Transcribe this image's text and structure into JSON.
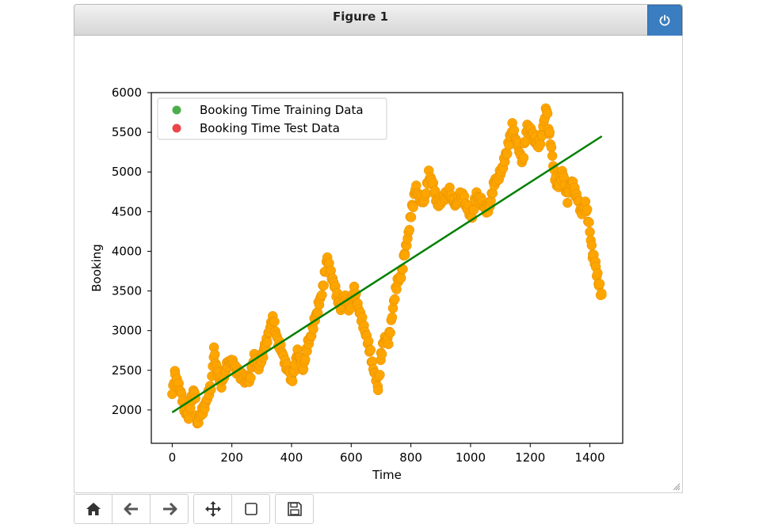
{
  "window": {
    "title": "Figure 1"
  },
  "toolbar": {
    "buttons": [
      {
        "name": "home",
        "icon": "home-icon"
      },
      {
        "name": "back",
        "icon": "arrow-left-icon"
      },
      {
        "name": "forward",
        "icon": "arrow-right-icon"
      },
      {
        "name": "pan",
        "icon": "move-icon"
      },
      {
        "name": "zoom",
        "icon": "square-icon"
      },
      {
        "name": "save",
        "icon": "save-icon"
      }
    ]
  },
  "colors": {
    "accent": "#3a7dc0",
    "scatter": "#ffa500",
    "trend": "#008000",
    "legend_train": "#2ca02c",
    "legend_test": "#e8262a"
  },
  "chart_data": {
    "type": "scatter",
    "title": "",
    "xlabel": "Time",
    "ylabel": "Booking",
    "xlim": [
      -70,
      1510
    ],
    "ylim": [
      1580,
      6000
    ],
    "xticks": [
      0,
      200,
      400,
      600,
      800,
      1000,
      1200,
      1400
    ],
    "yticks": [
      2000,
      2500,
      3000,
      3500,
      4000,
      4500,
      5000,
      5500,
      6000
    ],
    "legend": {
      "placement": "top-left",
      "entries": [
        {
          "label": "Booking Time Training Data",
          "color": "#2ca02c"
        },
        {
          "label": "Booking Time Test Data",
          "color": "#e8262a"
        }
      ]
    },
    "series": [
      {
        "kind": "scatter",
        "color": "#ffa500",
        "points": [
          [
            0,
            2200
          ],
          [
            10,
            2450
          ],
          [
            25,
            2250
          ],
          [
            40,
            2050
          ],
          [
            55,
            1900
          ],
          [
            65,
            2150
          ],
          [
            75,
            2250
          ],
          [
            85,
            1800
          ],
          [
            100,
            2000
          ],
          [
            115,
            2100
          ],
          [
            130,
            2300
          ],
          [
            140,
            2750
          ],
          [
            150,
            2500
          ],
          [
            165,
            2300
          ],
          [
            180,
            2550
          ],
          [
            200,
            2600
          ],
          [
            220,
            2500
          ],
          [
            240,
            2400
          ],
          [
            260,
            2350
          ],
          [
            275,
            2700
          ],
          [
            290,
            2500
          ],
          [
            310,
            2800
          ],
          [
            325,
            3000
          ],
          [
            340,
            3150
          ],
          [
            355,
            2850
          ],
          [
            370,
            2700
          ],
          [
            385,
            2550
          ],
          [
            400,
            2350
          ],
          [
            420,
            2750
          ],
          [
            440,
            2500
          ],
          [
            455,
            2850
          ],
          [
            470,
            3000
          ],
          [
            490,
            3300
          ],
          [
            505,
            3550
          ],
          [
            520,
            3900
          ],
          [
            535,
            3700
          ],
          [
            550,
            3450
          ],
          [
            565,
            3300
          ],
          [
            580,
            3400
          ],
          [
            595,
            3300
          ],
          [
            610,
            3500
          ],
          [
            625,
            3300
          ],
          [
            640,
            3050
          ],
          [
            655,
            2900
          ],
          [
            665,
            2700
          ],
          [
            680,
            2450
          ],
          [
            690,
            2300
          ],
          [
            700,
            2650
          ],
          [
            710,
            2900
          ],
          [
            725,
            2850
          ],
          [
            740,
            3300
          ],
          [
            755,
            3600
          ],
          [
            770,
            3750
          ],
          [
            780,
            4000
          ],
          [
            795,
            4300
          ],
          [
            805,
            4550
          ],
          [
            815,
            4800
          ],
          [
            830,
            4700
          ],
          [
            845,
            4600
          ],
          [
            860,
            5000
          ],
          [
            875,
            4800
          ],
          [
            890,
            4600
          ],
          [
            910,
            4650
          ],
          [
            930,
            4750
          ],
          [
            950,
            4600
          ],
          [
            970,
            4700
          ],
          [
            990,
            4550
          ],
          [
            1005,
            4450
          ],
          [
            1020,
            4700
          ],
          [
            1035,
            4650
          ],
          [
            1050,
            4500
          ],
          [
            1065,
            4600
          ],
          [
            1080,
            4850
          ],
          [
            1100,
            5000
          ],
          [
            1120,
            5200
          ],
          [
            1140,
            5550
          ],
          [
            1160,
            5350
          ],
          [
            1175,
            5100
          ],
          [
            1190,
            5600
          ],
          [
            1210,
            5450
          ],
          [
            1225,
            5300
          ],
          [
            1240,
            5500
          ],
          [
            1255,
            5800
          ],
          [
            1265,
            5450
          ],
          [
            1280,
            5000
          ],
          [
            1295,
            4800
          ],
          [
            1310,
            5000
          ],
          [
            1325,
            4650
          ],
          [
            1340,
            4900
          ],
          [
            1355,
            4700
          ],
          [
            1370,
            4500
          ],
          [
            1385,
            4600
          ],
          [
            1400,
            4250
          ],
          [
            1410,
            3950
          ],
          [
            1420,
            3800
          ],
          [
            1430,
            3600
          ],
          [
            1440,
            3450
          ]
        ]
      },
      {
        "kind": "line",
        "color": "#008000",
        "points": [
          [
            0,
            1970
          ],
          [
            1440,
            5450
          ]
        ]
      }
    ]
  }
}
